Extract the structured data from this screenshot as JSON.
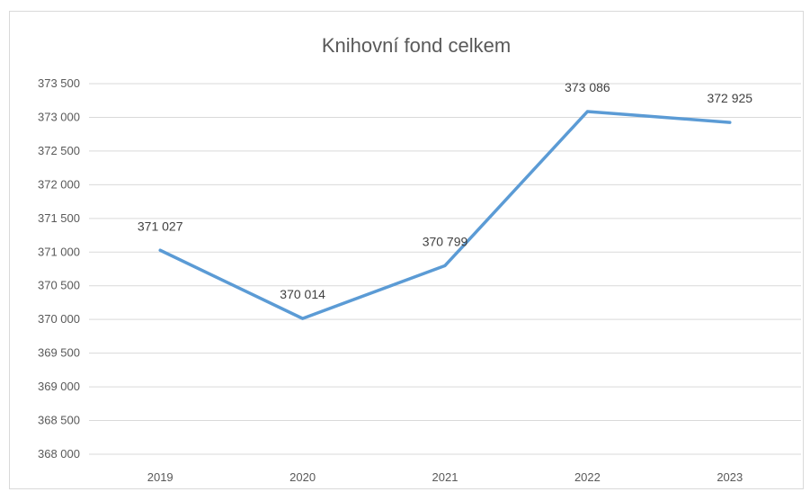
{
  "chart_data": {
    "type": "line",
    "title": "Knihovní fond celkem",
    "xlabel": "",
    "ylabel": "",
    "categories": [
      "2019",
      "2020",
      "2021",
      "2022",
      "2023"
    ],
    "series": [
      {
        "values": [
          371027,
          370014,
          370799,
          373086,
          372925
        ]
      }
    ],
    "data_labels": [
      "371 027",
      "370 014",
      "370 799",
      "373 086",
      "372 925"
    ],
    "ylim": [
      368000,
      373500
    ],
    "yticks": [
      368000,
      368500,
      369000,
      369500,
      370000,
      370500,
      371000,
      371500,
      372000,
      372500,
      373000,
      373500
    ],
    "ytick_labels": [
      "368 000",
      "368 500",
      "369 000",
      "369 500",
      "370 000",
      "370 500",
      "371 000",
      "371 500",
      "372 000",
      "372 500",
      "373 000",
      "373 500"
    ],
    "grid": true,
    "legend": "none",
    "colors": {
      "line": "#5b9bd5",
      "grid": "#d9d9d9",
      "text": "#595959"
    }
  }
}
